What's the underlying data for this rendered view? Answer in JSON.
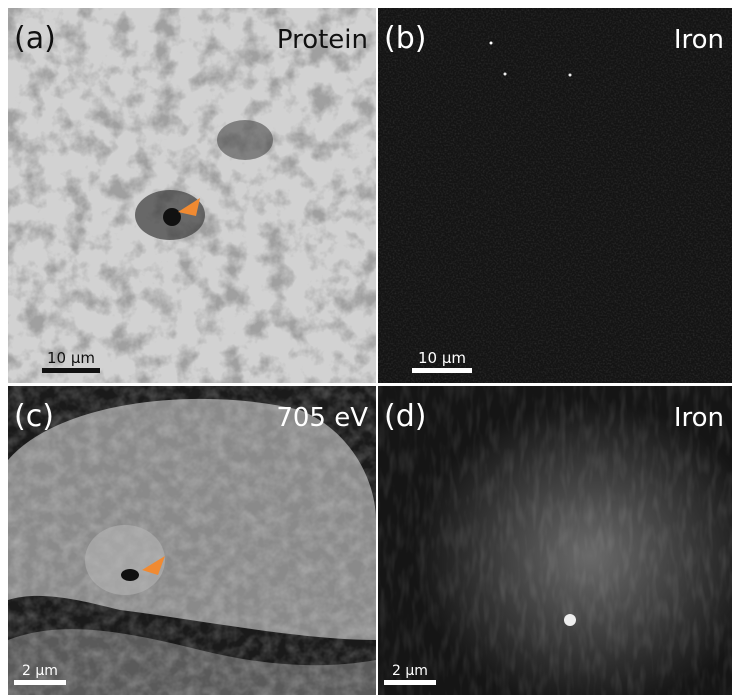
{
  "panels": [
    {
      "label": "(a)",
      "title": "Protein",
      "scale": "10 µm"
    },
    {
      "label": "(b)",
      "title": "Iron",
      "scale": "10 µm"
    },
    {
      "label": "(c)",
      "title": "705 eV",
      "scale": "2 µm"
    },
    {
      "label": "(d)",
      "title": "Iron",
      "scale": "2 µm"
    }
  ]
}
